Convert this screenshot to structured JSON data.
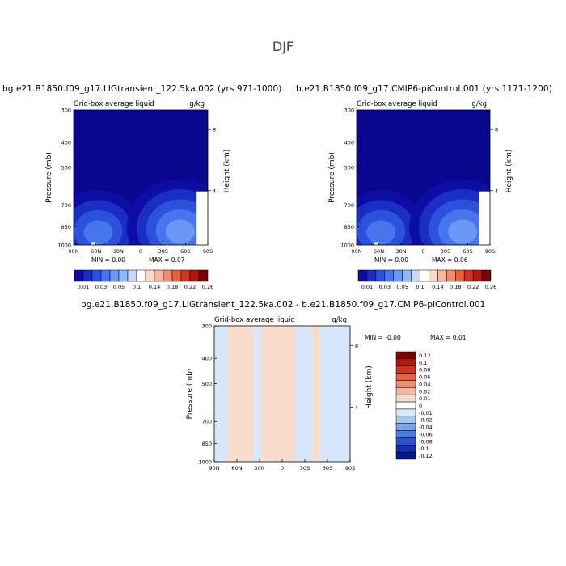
{
  "page_title": "DJF",
  "chart_data": [
    {
      "type": "heatmap",
      "title": "bg.e21.B1850.f09_g17.LIGtransient_122.5ka.002 (yrs 971-1000)",
      "subtitle_left": "Grid-box average liquid",
      "subtitle_right": "g/kg",
      "xlabel": "",
      "ylabel": "Pressure (mb)",
      "ylabel_right": "Height (km)",
      "x_ticks": [
        "90N",
        "60N",
        "30N",
        "0",
        "30S",
        "60S",
        "90S"
      ],
      "y_ticks": [
        "300",
        "400",
        "500",
        "700",
        "850",
        "1000"
      ],
      "y_right_ticks": [
        "8",
        "4"
      ],
      "y_scale": "log",
      "min_text": "MIN =    0.00",
      "max_text": "MAX =   0.07",
      "colorbar_labels": [
        "0.01",
        "0.03",
        "0.05",
        "0.1",
        "0.14",
        "0.18",
        "0.22",
        "0.26"
      ],
      "features": [
        {
          "lat": 57,
          "p": 865,
          "level": 3
        },
        {
          "lat": -53,
          "p": 850,
          "level": 4
        }
      ]
    },
    {
      "type": "heatmap",
      "title": "b.e21.B1850.f09_g17.CMIP6-piControl.001 (yrs 1171-1200)",
      "subtitle_left": "Grid-box average liquid",
      "subtitle_right": "g/kg",
      "xlabel": "",
      "ylabel": "Pressure (mb)",
      "ylabel_right": "Height (km)",
      "x_ticks": [
        "90N",
        "60N",
        "30N",
        "0",
        "30S",
        "60S",
        "90S"
      ],
      "y_ticks": [
        "300",
        "400",
        "500",
        "700",
        "850",
        "1000"
      ],
      "y_right_ticks": [
        "8",
        "4"
      ],
      "y_scale": "log",
      "min_text": "MIN =    0.00",
      "max_text": "MAX =   0.06",
      "colorbar_labels": [
        "0.01",
        "0.03",
        "0.05",
        "0.1",
        "0.14",
        "0.18",
        "0.22",
        "0.26"
      ],
      "features": [
        {
          "lat": 57,
          "p": 865,
          "level": 3
        },
        {
          "lat": -53,
          "p": 850,
          "level": 4
        }
      ]
    },
    {
      "type": "heatmap",
      "title": "bg.e21.B1850.f09_g17.LIGtransient_122.5ka.002 - b.e21.B1850.f09_g17.CMIP6-piControl.001",
      "subtitle_left": "Grid-box average liquid",
      "subtitle_right": "g/kg",
      "xlabel": "",
      "ylabel": "Pressure (mb)",
      "ylabel_right": "Height (km)",
      "x_ticks": [
        "90N",
        "60N",
        "30N",
        "0",
        "30S",
        "60S",
        "90S"
      ],
      "y_ticks": [
        "300",
        "400",
        "500",
        "700",
        "850",
        "1000"
      ],
      "y_right_ticks": [
        "8",
        "4"
      ],
      "y_scale": "log",
      "min_text": "MIN =   -0.00",
      "max_text": "MAX =    0.01",
      "colorbar_labels": [
        "0.12",
        "0.1",
        "0.08",
        "0.06",
        "0.04",
        "0.02",
        "0.01",
        "0",
        "-0.01",
        "-0.02",
        "-0.04",
        "-0.06",
        "-0.08",
        "-0.1",
        "-0.12"
      ],
      "bands_lat": [
        {
          "from": 90,
          "to": 72,
          "sign": -1
        },
        {
          "from": 72,
          "to": 38,
          "sign": 1
        },
        {
          "from": 38,
          "to": 28,
          "sign": -1
        },
        {
          "from": 28,
          "to": -18,
          "sign": 1
        },
        {
          "from": -18,
          "to": -40,
          "sign": -1
        },
        {
          "from": -40,
          "to": -50,
          "sign": 1
        },
        {
          "from": -50,
          "to": -90,
          "sign": -1
        }
      ]
    }
  ],
  "colors": {
    "bg_deep": "#08088f",
    "seq": [
      "#0d0da6",
      "#1a2ec4",
      "#2c52dd",
      "#4775ee",
      "#6b97f7",
      "#93b7fb"
    ],
    "pos": [
      "#f8dccb",
      "#f5b7a0",
      "#ee8c6d",
      "#e4603f",
      "#cf3520",
      "#b0190f",
      "#7a0303"
    ],
    "neg": [
      "#d8e7fb",
      "#a9c6f3",
      "#7aa2ea",
      "#4d7de0",
      "#2a55cf",
      "#1230b2",
      "#061a8c"
    ],
    "white": "#ffffff"
  }
}
